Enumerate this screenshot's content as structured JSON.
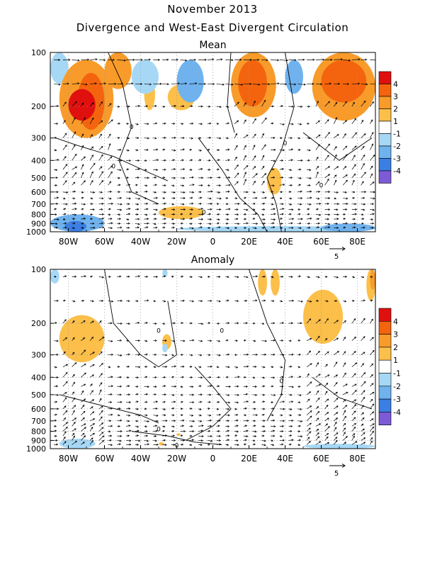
{
  "figure": {
    "title": "November 2013",
    "subtitle": "Divergence and West-East Divergent Circulation"
  },
  "chart_data": [
    {
      "type": "heatmap",
      "title": "Mean",
      "x_ticks": [
        "80W",
        "60W",
        "40W",
        "20W",
        "0",
        "20E",
        "40E",
        "60E",
        "80E"
      ],
      "x_tick_values": [
        -80,
        -60,
        -40,
        -20,
        0,
        20,
        40,
        60,
        80
      ],
      "xlim": [
        -90,
        90
      ],
      "y_ticks": [
        "100",
        "200",
        "300",
        "400",
        "500",
        "600",
        "700",
        "800",
        "900",
        "1000"
      ],
      "y_tick_values": [
        100,
        200,
        300,
        400,
        500,
        600,
        700,
        800,
        900,
        1000
      ],
      "ylim": [
        1000,
        100
      ],
      "y_scale": "log",
      "colorbar": {
        "labels": [
          "4",
          "3",
          "2",
          "1",
          "-1",
          "-2",
          "-3",
          "-4"
        ],
        "colors": [
          "#e0100f",
          "#f4640e",
          "#f89b2a",
          "#fbbf4a",
          "#ffffff",
          "#a6d8f6",
          "#6fb2ee",
          "#3b7ee4",
          "#7d5bd6"
        ]
      },
      "contour_label": "0",
      "reference_vector": "5",
      "regions": [
        {
          "lon": [
            -85,
            -55
          ],
          "p": [
            110,
            300
          ],
          "level": 2
        },
        {
          "lon": [
            -80,
            -65
          ],
          "p": [
            160,
            240
          ],
          "level": 4
        },
        {
          "lon": [
            -75,
            -60
          ],
          "p": [
            130,
            270
          ],
          "level": 3
        },
        {
          "lon": [
            -60,
            -45
          ],
          "p": [
            100,
            160
          ],
          "level": 2
        },
        {
          "lon": [
            -38,
            -32
          ],
          "p": [
            140,
            210
          ],
          "level": 1
        },
        {
          "lon": [
            -25,
            -10
          ],
          "p": [
            150,
            210
          ],
          "level": 1
        },
        {
          "lon": [
            10,
            35
          ],
          "p": [
            100,
            230
          ],
          "level": 2
        },
        {
          "lon": [
            14,
            30
          ],
          "p": [
            110,
            200
          ],
          "level": 3
        },
        {
          "lon": [
            55,
            90
          ],
          "p": [
            100,
            240
          ],
          "level": 2
        },
        {
          "lon": [
            60,
            85
          ],
          "p": [
            110,
            190
          ],
          "level": 3
        },
        {
          "lon": [
            -30,
            -5
          ],
          "p": [
            720,
            850
          ],
          "level": 1
        },
        {
          "lon": [
            30,
            38
          ],
          "p": [
            440,
            620
          ],
          "level": 1
        },
        {
          "lon": [
            -45,
            -30
          ],
          "p": [
            110,
            170
          ],
          "level": -1
        },
        {
          "lon": [
            -20,
            -5
          ],
          "p": [
            110,
            190
          ],
          "level": -2
        },
        {
          "lon": [
            40,
            50
          ],
          "p": [
            110,
            170
          ],
          "level": -2
        },
        {
          "lon": [
            -90,
            -80
          ],
          "p": [
            100,
            150
          ],
          "level": -1
        },
        {
          "lon": [
            -90,
            -60
          ],
          "p": [
            800,
            1000
          ],
          "level": -2
        },
        {
          "lon": [
            -82,
            -70
          ],
          "p": [
            870,
            1000
          ],
          "level": -3
        },
        {
          "lon": [
            -20,
            90
          ],
          "p": [
            930,
            1000
          ],
          "level": -1
        },
        {
          "lon": [
            60,
            90
          ],
          "p": [
            900,
            1000
          ],
          "level": -2
        }
      ]
    },
    {
      "type": "heatmap",
      "title": "Anomaly",
      "x_ticks": [
        "80W",
        "60W",
        "40W",
        "20W",
        "0",
        "20E",
        "40E",
        "60E",
        "80E"
      ],
      "x_tick_values": [
        -80,
        -60,
        -40,
        -20,
        0,
        20,
        40,
        60,
        80
      ],
      "xlim": [
        -90,
        90
      ],
      "y_ticks": [
        "100",
        "200",
        "300",
        "400",
        "500",
        "600",
        "700",
        "800",
        "900",
        "1000"
      ],
      "y_tick_values": [
        100,
        200,
        300,
        400,
        500,
        600,
        700,
        800,
        900,
        1000
      ],
      "ylim": [
        1000,
        100
      ],
      "y_scale": "log",
      "colorbar": {
        "labels": [
          "4",
          "3",
          "2",
          "1",
          "-1",
          "-2",
          "-3",
          "-4"
        ],
        "colors": [
          "#e0100f",
          "#f4640e",
          "#f89b2a",
          "#fbbf4a",
          "#ffffff",
          "#a6d8f6",
          "#6fb2ee",
          "#3b7ee4",
          "#7d5bd6"
        ]
      },
      "contour_label": "0",
      "reference_vector": "5",
      "regions": [
        {
          "lon": [
            -85,
            -60
          ],
          "p": [
            180,
            330
          ],
          "level": 1
        },
        {
          "lon": [
            -28,
            -23
          ],
          "p": [
            230,
            280
          ],
          "level": 1
        },
        {
          "lon": [
            25,
            30
          ],
          "p": [
            100,
            140
          ],
          "level": 1
        },
        {
          "lon": [
            32,
            37
          ],
          "p": [
            100,
            140
          ],
          "level": 1
        },
        {
          "lon": [
            50,
            72
          ],
          "p": [
            130,
            260
          ],
          "level": 1
        },
        {
          "lon": [
            85,
            90
          ],
          "p": [
            100,
            150
          ],
          "level": 1
        },
        {
          "lon": [
            87,
            90
          ],
          "p": [
            100,
            130
          ],
          "level": 2
        },
        {
          "lon": [
            -90,
            -85
          ],
          "p": [
            100,
            120
          ],
          "level": -1
        },
        {
          "lon": [
            -28,
            -25
          ],
          "p": [
            100,
            110
          ],
          "level": -1
        },
        {
          "lon": [
            -28,
            -25
          ],
          "p": [
            260,
            290
          ],
          "level": -1
        },
        {
          "lon": [
            -85,
            -65
          ],
          "p": [
            880,
            1000
          ],
          "level": -1
        },
        {
          "lon": [
            -30,
            -27
          ],
          "p": [
            920,
            960
          ],
          "level": 1
        },
        {
          "lon": [
            -20,
            -18
          ],
          "p": [
            820,
            850
          ],
          "level": 1
        },
        {
          "lon": [
            50,
            90
          ],
          "p": [
            940,
            1000
          ],
          "level": -1
        }
      ]
    }
  ]
}
